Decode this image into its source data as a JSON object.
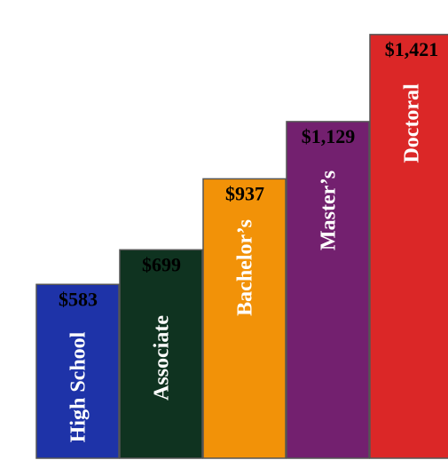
{
  "chart_data": {
    "type": "bar",
    "title": "",
    "xlabel": "",
    "ylabel": "",
    "categories": [
      "High School",
      "Associate",
      "Bachelor’s",
      "Master’s",
      "Doctoral"
    ],
    "values": [
      583,
      699,
      937,
      1129,
      1421
    ],
    "value_labels": [
      "$583",
      "$699",
      "$937",
      "$1,129",
      "$1,421"
    ],
    "colors": [
      "#1e33a8",
      "#0f3320",
      "#f29208",
      "#73206f",
      "#db2727"
    ],
    "ylim": [
      0,
      1510
    ],
    "grid": false,
    "legend": "none"
  }
}
